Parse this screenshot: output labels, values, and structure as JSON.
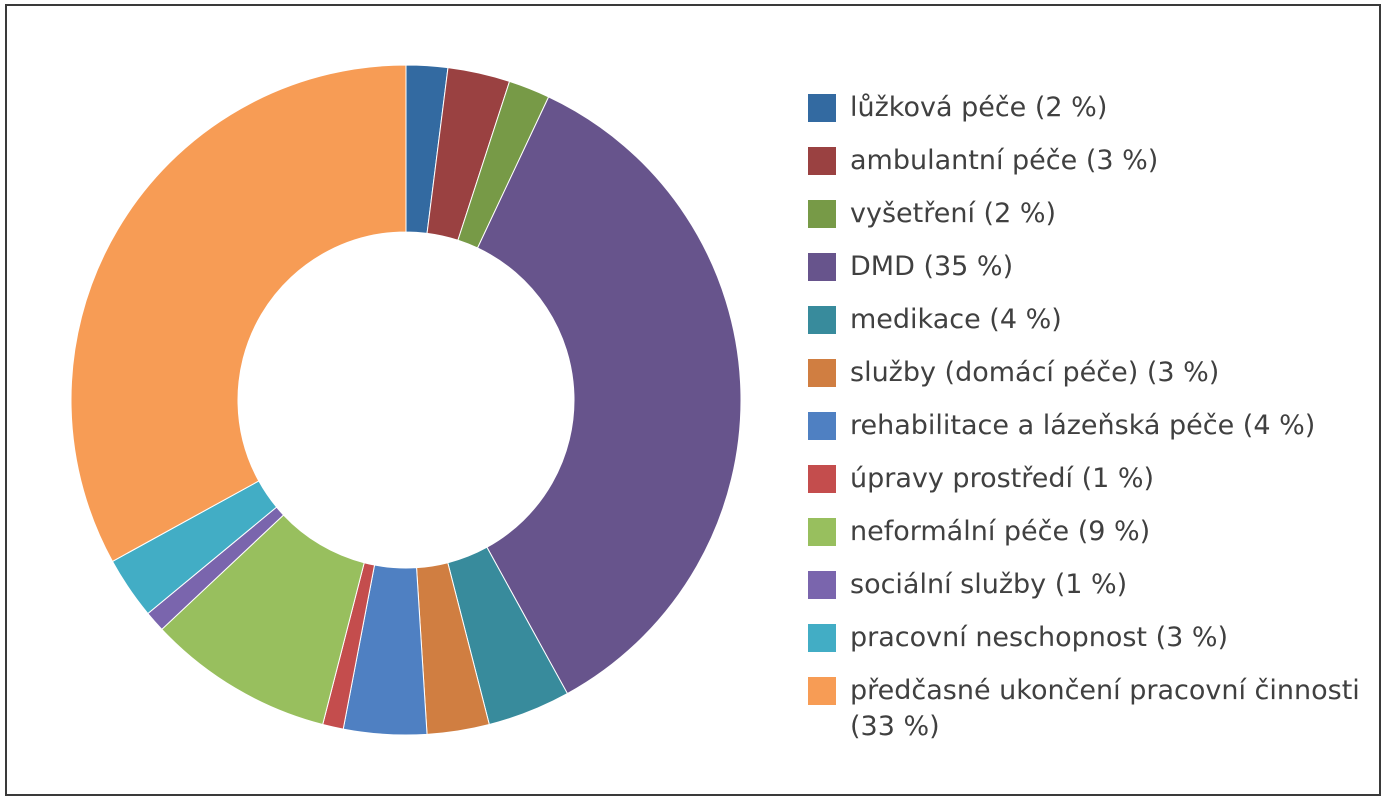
{
  "chart_data": {
    "type": "pie",
    "variant": "donut",
    "legend_position": "right",
    "categories": [
      "lůžková péče (2 %)",
      "ambulantní péče (3 %)",
      "vyšetření (2 %)",
      "DMD (35 %)",
      "medikace (4 %)",
      "služby (domácí péče) (3 %)",
      "rehabilitace a lázeňská péče (4 %)",
      "úpravy prostředí (1 %)",
      "neformální péče (9 %)",
      "sociální služby (1 %)",
      "pracovní neschopnost (3 %)",
      "předčasné ukončení pracovní činnosti (33 %)"
    ],
    "values": [
      2,
      3,
      2,
      35,
      4,
      3,
      4,
      1,
      9,
      1,
      3,
      33
    ],
    "colors": [
      "#336aa1",
      "#9a4141",
      "#779a47",
      "#67548c",
      "#388b9c",
      "#d07e41",
      "#4f80c2",
      "#c44d4d",
      "#98bf5e",
      "#7a65ad",
      "#42adc5",
      "#f79c55"
    ]
  }
}
